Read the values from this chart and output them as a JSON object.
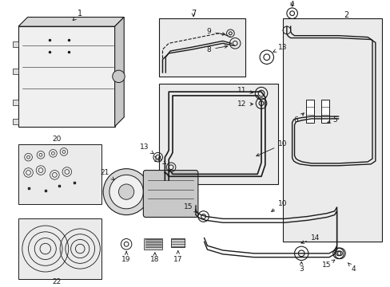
{
  "bg_color": "#ffffff",
  "line_color": "#1a1a1a",
  "box_bg": "#ebebeb",
  "fig_w": 4.89,
  "fig_h": 3.6,
  "dpi": 100
}
